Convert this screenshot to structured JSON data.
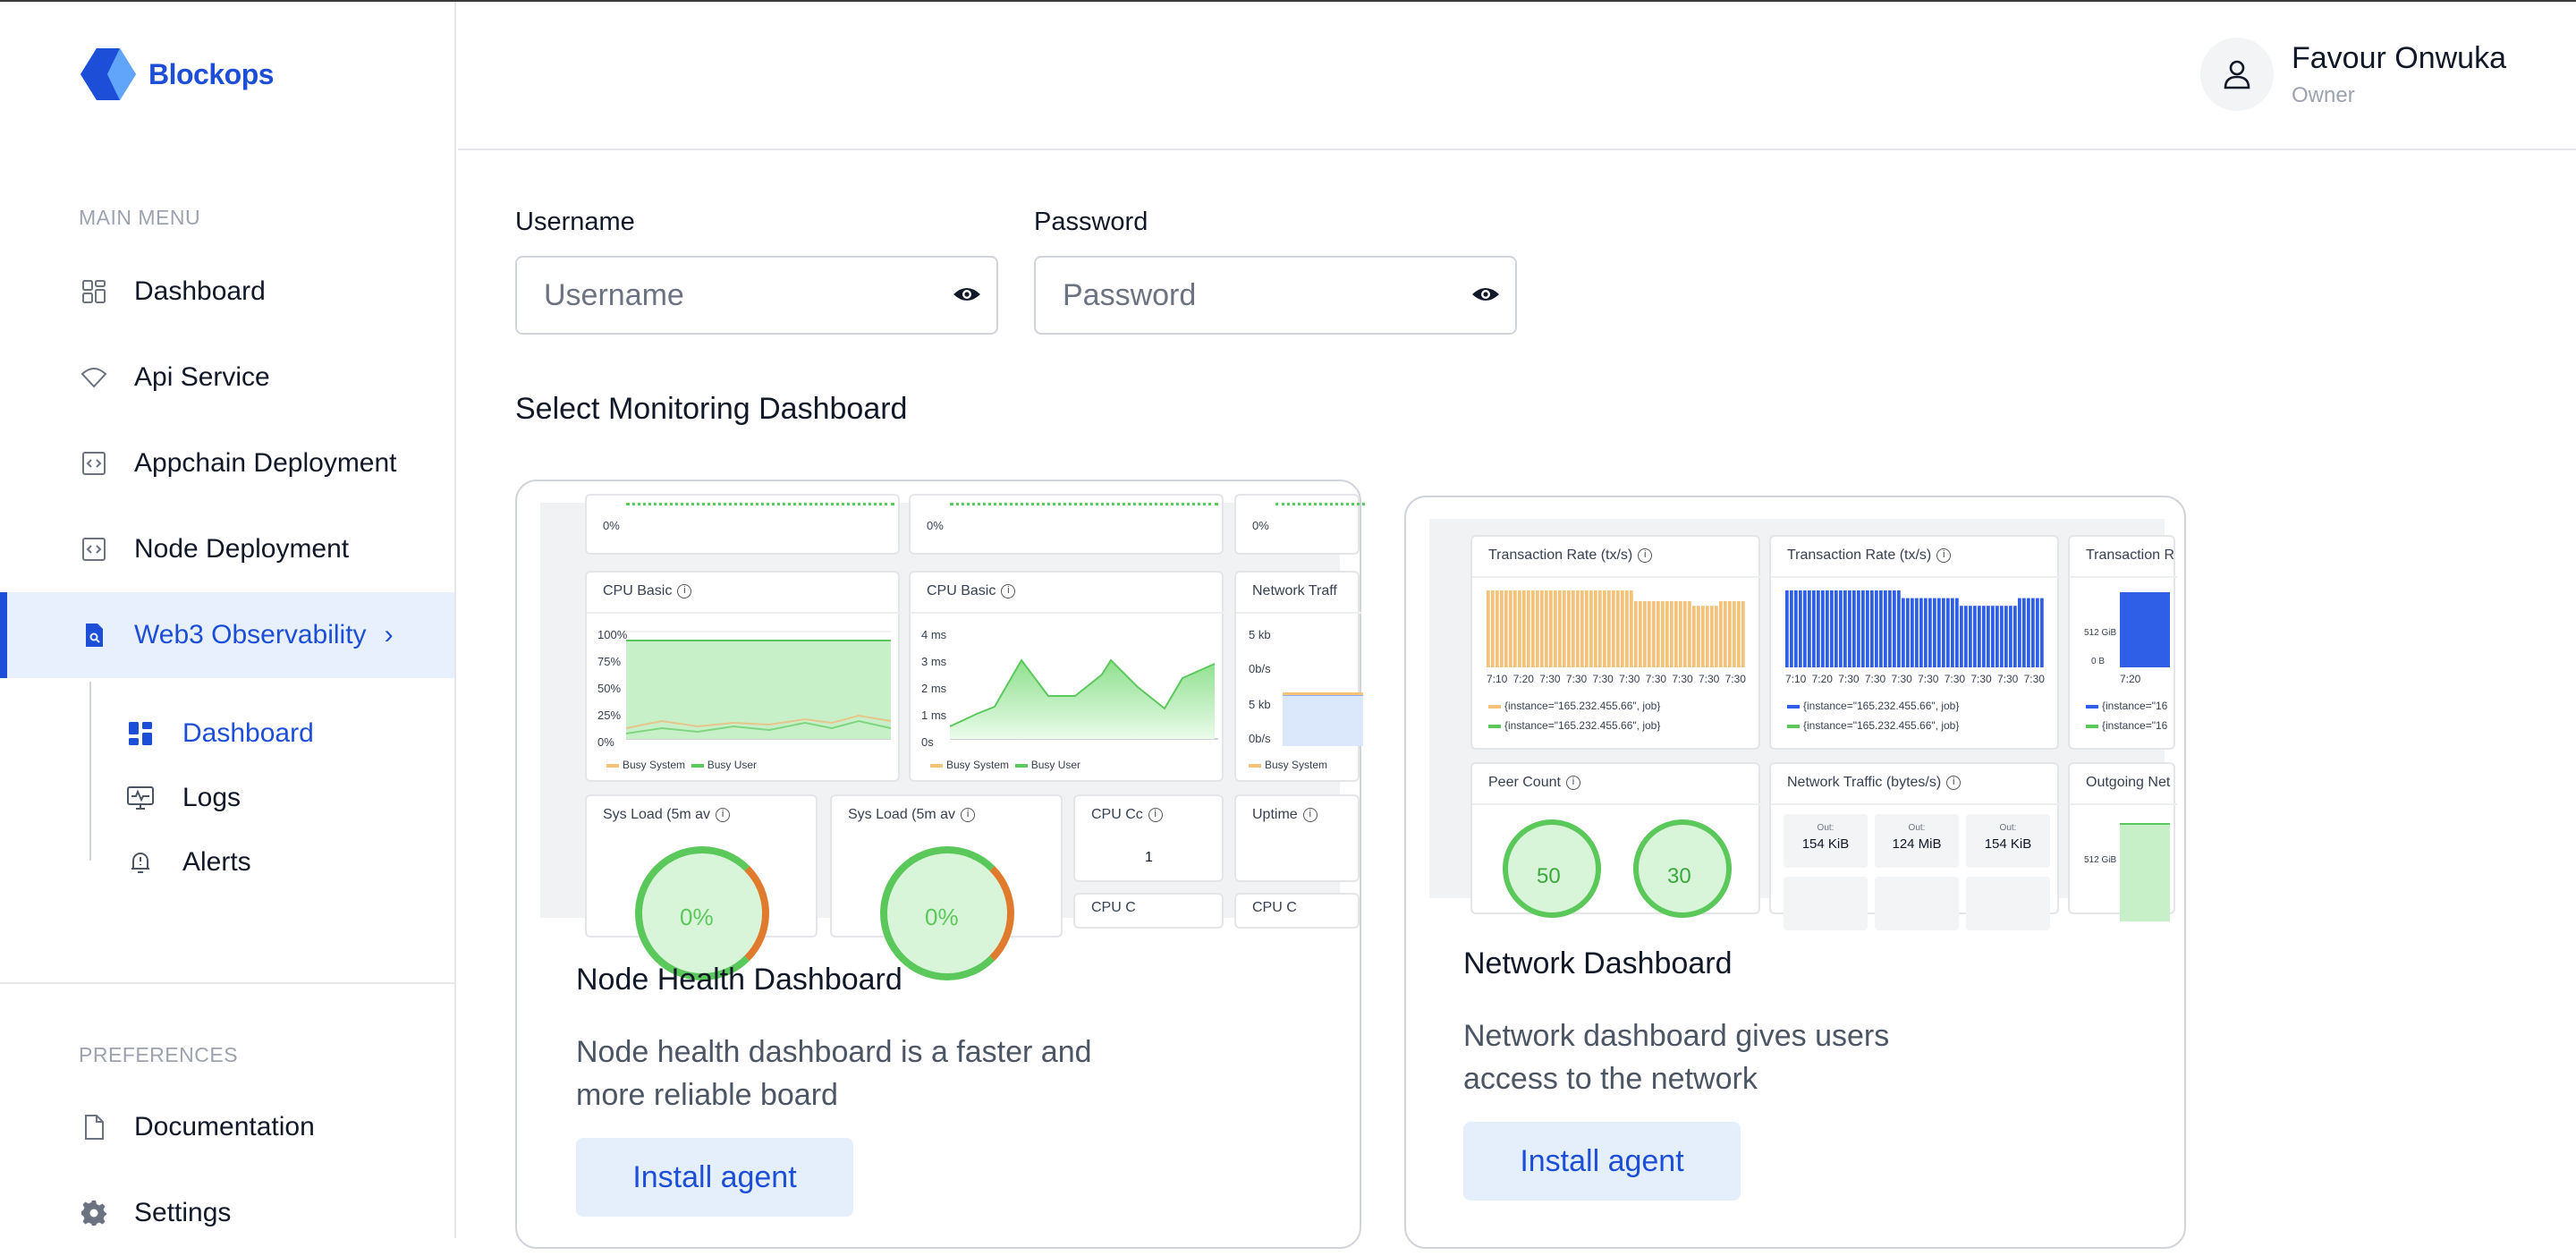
{
  "brand": {
    "name": "Blockops"
  },
  "sidebar": {
    "main_menu_label": "MAIN MENU",
    "items": [
      {
        "label": "Dashboard",
        "icon": "grid-icon"
      },
      {
        "label": "Api Service",
        "icon": "wifi-icon"
      },
      {
        "label": "Appchain Deployment",
        "icon": "code-icon"
      },
      {
        "label": "Node Deployment",
        "icon": "code-icon"
      },
      {
        "label": "Web3 Observability",
        "icon": "search-doc-icon",
        "active": true
      }
    ],
    "sub_items": [
      {
        "label": "Dashboard",
        "icon": "dashboard-icon",
        "active": true
      },
      {
        "label": "Logs",
        "icon": "monitor-icon"
      },
      {
        "label": "Alerts",
        "icon": "bell-icon"
      }
    ],
    "preferences_label": "PREFERENCES",
    "pref_items": [
      {
        "label": "Documentation",
        "icon": "document-icon"
      },
      {
        "label": "Settings",
        "icon": "gear-icon"
      }
    ]
  },
  "user": {
    "name": "Favour Onwuka",
    "role": "Owner"
  },
  "form": {
    "username": {
      "label": "Username",
      "placeholder": "Username",
      "value": ""
    },
    "password": {
      "label": "Password",
      "placeholder": "Password",
      "value": ""
    }
  },
  "section_title": "Select Monitoring Dashboard",
  "cards": [
    {
      "title": "Node Health Dashboard",
      "desc_line1": "Node health dashboard is a faster and",
      "desc_line2": "more reliable board",
      "button": "Install agent",
      "preview": {
        "top_ticks": [
          "0%",
          "0%",
          "0%"
        ],
        "cpu_basic_1": {
          "title": "CPU Basic",
          "yticks": [
            "100%",
            "75%",
            "50%",
            "25%",
            "0%"
          ],
          "legend": [
            "Busy System",
            "Busy User"
          ]
        },
        "cpu_basic_2": {
          "title": "CPU Basic",
          "yticks": [
            "4 ms",
            "3 ms",
            "2 ms",
            "1 ms",
            "0s"
          ],
          "legend": [
            "Busy System",
            "Busy User"
          ]
        },
        "network_traffic": {
          "title": "Network Traff",
          "yticks": [
            "5 kb",
            "0b/s",
            "5 kb",
            "0b/s"
          ],
          "legend": [
            "Busy System"
          ]
        },
        "sys_load_1": {
          "title": "Sys Load (5m av",
          "value": "0%"
        },
        "sys_load_2": {
          "title": "Sys Load (5m av",
          "value": "0%"
        },
        "cpu_cores": {
          "title": "CPU Cc",
          "value": "1"
        },
        "uptime": {
          "title": "Uptime"
        },
        "bottom_small_1": "CPU C",
        "bottom_small_2": "CPU C"
      }
    },
    {
      "title": "Network Dashboard",
      "desc_line1": "Network dashboard gives users",
      "desc_line2": "access to the network",
      "button": "Install agent",
      "preview": {
        "tx_rate_1": {
          "title": "Transaction Rate (tx/s)",
          "xticks": [
            "7:10",
            "7:20",
            "7:30",
            "7:30",
            "7:30",
            "7:30",
            "7:30",
            "7:30",
            "7:30",
            "7:30"
          ],
          "legend": [
            "{instance=\"165.232.455.66\", job}",
            "{instance=\"165.232.455.66\", job}"
          ]
        },
        "tx_rate_2": {
          "title": "Transaction Rate (tx/s)",
          "xticks": [
            "7:10",
            "7:20",
            "7:30",
            "7:30",
            "7:30",
            "7:30",
            "7:30",
            "7:30",
            "7:30",
            "7:30"
          ],
          "legend": [
            "{instance=\"165.232.455.66\", job}",
            "{instance=\"165.232.455.66\", job}"
          ]
        },
        "tx_rate_3": {
          "title": "Transaction R",
          "yticks": [
            "512 GiB",
            "0 B"
          ],
          "xtick": "7:20",
          "legend": [
            "{instance=\"16",
            "{instance=\"16"
          ]
        },
        "peer_count": {
          "title": "Peer Count",
          "values": [
            "50",
            "30"
          ]
        },
        "network_traffic": {
          "title": "Network Traffic (bytes/s)",
          "out_label": "Out:",
          "values": [
            "154 KiB",
            "124 MiB",
            "154 KiB"
          ]
        },
        "outgoing": {
          "title": "Outgoing Net",
          "ytick": "512 GiB"
        }
      }
    }
  ],
  "colors": {
    "accent": "#1d4ed8",
    "active_bg": "#e8f0fd",
    "orange_bars": "#f5c27a",
    "blue_bars": "#2f5fe6",
    "green_fill": "#c8f0c8",
    "green_line": "#5bc85b"
  }
}
